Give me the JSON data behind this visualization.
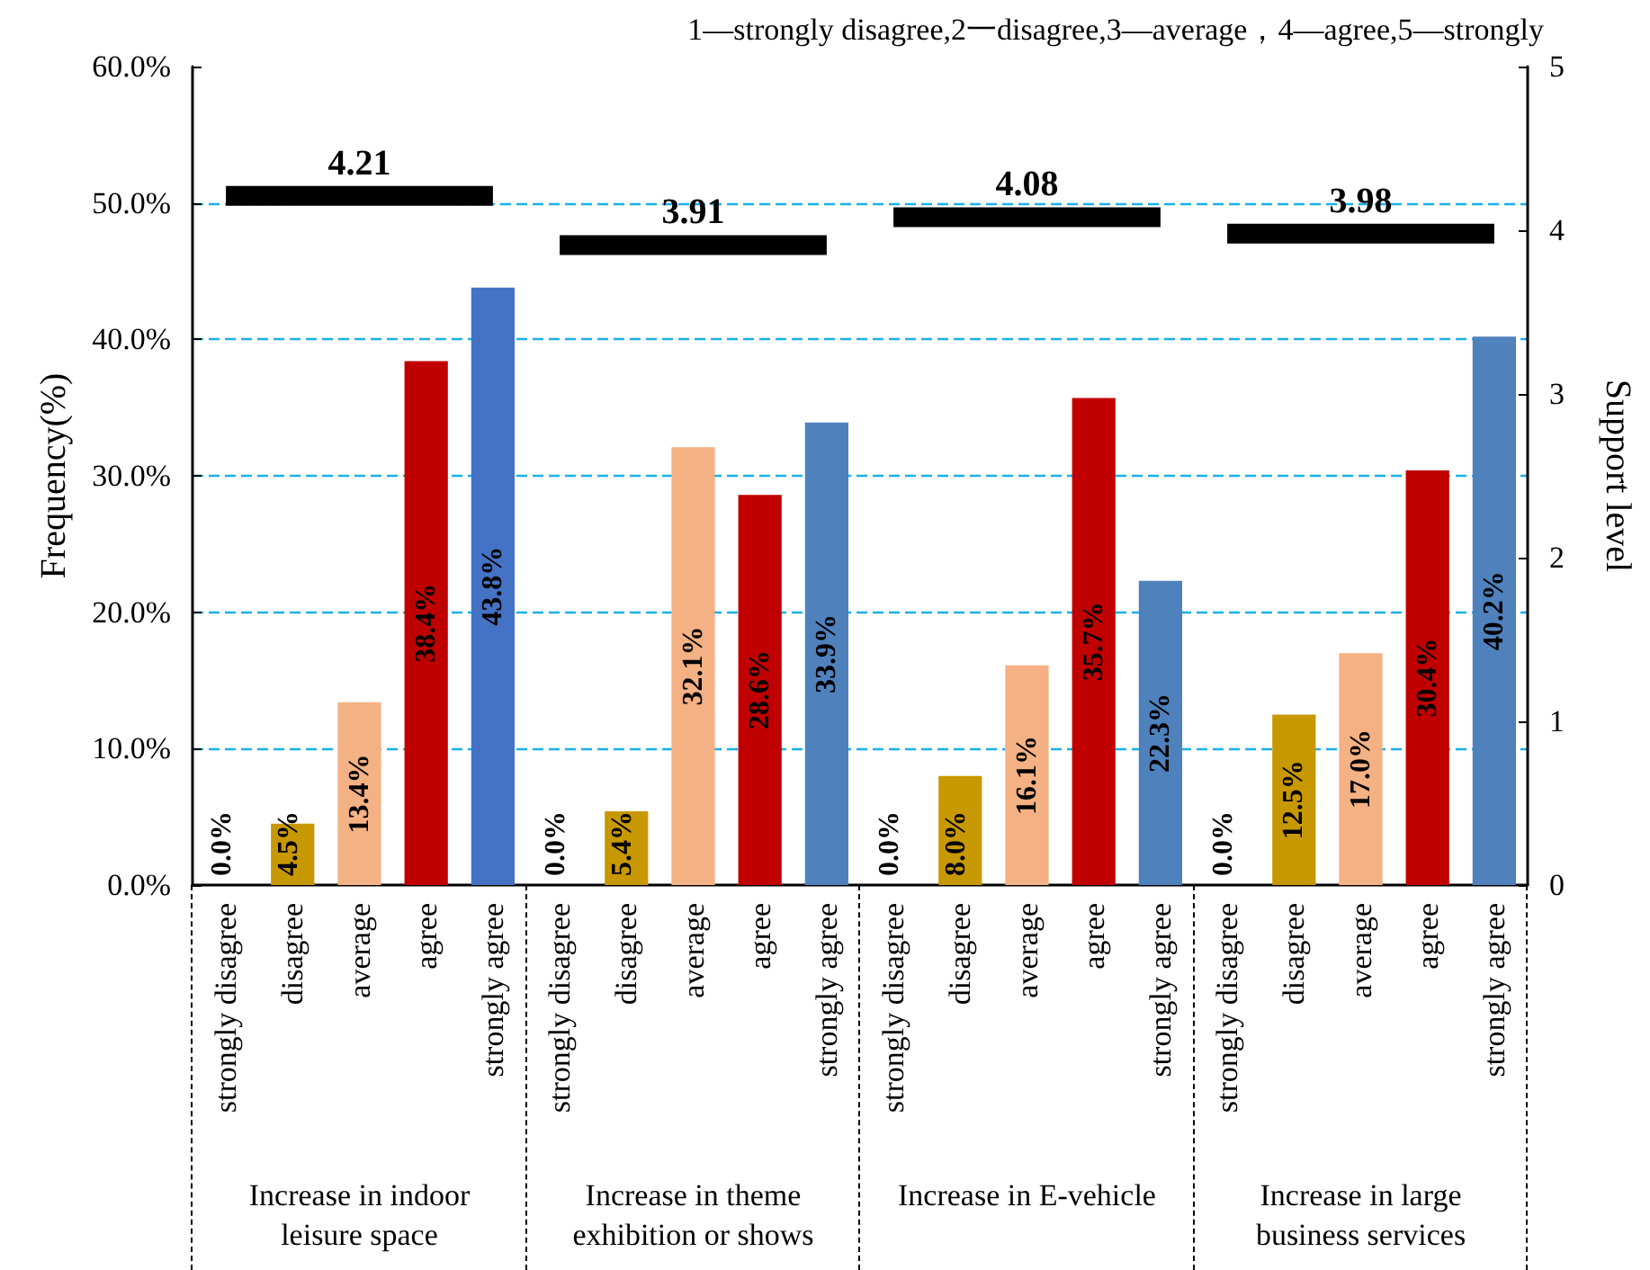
{
  "chart_data": {
    "type": "bar",
    "ylabel": "Frequency(%)",
    "y2label": "Support level",
    "categories": [
      "strongly disagree",
      "disagree",
      "average",
      "agree",
      "strongly agree",
      "strongly disagree",
      "disagree",
      "average",
      "agree",
      "strongly agree",
      "strongly disagree",
      "disagree",
      "average",
      "agree",
      "strongly agree",
      "strongly disagree",
      "disagree",
      "average",
      "agree",
      "strongly agree"
    ],
    "series": [
      {
        "colors": [
          "#c89800",
          "#c89800",
          "#f4b183",
          "#c00000",
          "#4472c4",
          "#c89800",
          "#c89800",
          "#f4b183",
          "#c00000",
          "#4f81bd",
          "#c89800",
          "#c89800",
          "#f4b183",
          "#c00000",
          "#4f81bd",
          "#c89800",
          "#c89800",
          "#f4b183",
          "#c00000",
          "#4f81bd"
        ],
        "values": [
          0,
          4.5,
          13.4,
          38.4,
          43.8,
          0,
          5.4,
          32.1,
          28.6,
          33.9,
          0,
          8.0,
          16.1,
          35.7,
          22.3,
          0,
          12.5,
          17.0,
          30.4,
          40.2
        ],
        "value_labels": [
          "0.0%",
          "4.5%",
          "13.4%",
          "38.4%",
          "43.8%",
          "0.0%",
          "5.4%",
          "32.1%",
          "28.6%",
          "33.9%",
          "0.0%",
          "8.0%",
          "16.1%",
          "35.7%",
          "22.3%",
          "0.0%",
          "12.5%",
          "17.0%",
          "30.4%",
          "40.2%"
        ]
      },
      {
        "type": "line",
        "axis": "y2",
        "color": "#000000",
        "values": [
          4.21,
          4.21,
          4.21,
          4.21,
          4.21,
          null,
          null,
          null,
          null,
          null,
          null,
          null,
          null,
          null,
          null,
          null,
          null,
          null,
          null,
          null
        ],
        "value_labels": [
          null,
          null,
          "4.21",
          null,
          null,
          null,
          null,
          null,
          null,
          null,
          null,
          null,
          null,
          null,
          null,
          null,
          null,
          null,
          null,
          null
        ]
      },
      {
        "type": "line",
        "axis": "y2",
        "color": "#000000",
        "values": [
          null,
          null,
          null,
          null,
          null,
          3.91,
          3.91,
          3.91,
          3.91,
          3.91,
          null,
          null,
          null,
          null,
          null,
          null,
          null,
          null,
          null,
          null
        ],
        "value_labels": [
          null,
          null,
          null,
          null,
          null,
          null,
          null,
          "3.91",
          null,
          null,
          null,
          null,
          null,
          null,
          null,
          null,
          null,
          null,
          null,
          null
        ]
      },
      {
        "type": "line",
        "axis": "y2",
        "color": "#000000",
        "values": [
          null,
          null,
          null,
          null,
          null,
          null,
          null,
          null,
          null,
          null,
          4.08,
          4.08,
          4.08,
          4.08,
          4.08,
          null,
          null,
          null,
          null,
          null
        ],
        "value_labels": [
          null,
          null,
          null,
          null,
          null,
          null,
          null,
          null,
          null,
          null,
          null,
          null,
          "4.08",
          null,
          null,
          null,
          null,
          null,
          null,
          null
        ]
      },
      {
        "type": "line",
        "axis": "y2",
        "color": "#000000",
        "values": [
          null,
          null,
          null,
          null,
          null,
          null,
          null,
          null,
          null,
          null,
          null,
          null,
          null,
          null,
          null,
          3.98,
          3.98,
          3.98,
          3.98,
          3.98
        ],
        "value_labels": [
          null,
          null,
          null,
          null,
          null,
          null,
          null,
          null,
          null,
          null,
          null,
          null,
          null,
          null,
          null,
          null,
          null,
          "3.98",
          null,
          null
        ]
      }
    ],
    "ylim": [
      0,
      60
    ],
    "yticks": [
      {
        "value": 0,
        "label": "0.0%"
      },
      {
        "value": 10,
        "label": "10.0%"
      },
      {
        "value": 20,
        "label": "20.0%"
      },
      {
        "value": 30,
        "label": "30.0%"
      },
      {
        "value": 40,
        "label": "40.0%"
      },
      {
        "value": 50,
        "label": "50.0%"
      },
      {
        "value": 60,
        "label": "60.0%"
      }
    ],
    "y2lim": [
      0,
      5
    ],
    "y2ticks": [
      0,
      1,
      2,
      3,
      4,
      5
    ],
    "grid": "y",
    "marker": "none",
    "line_style": "solid",
    "annotations": [
      "1—strongly disagree,2一disagree,3—average，4—agree,5—strongly",
      "Increase in indoor leisure space",
      "Increase in theme exhibition or shows",
      "Increase in E-vehicle",
      "Increase in large business services"
    ]
  }
}
